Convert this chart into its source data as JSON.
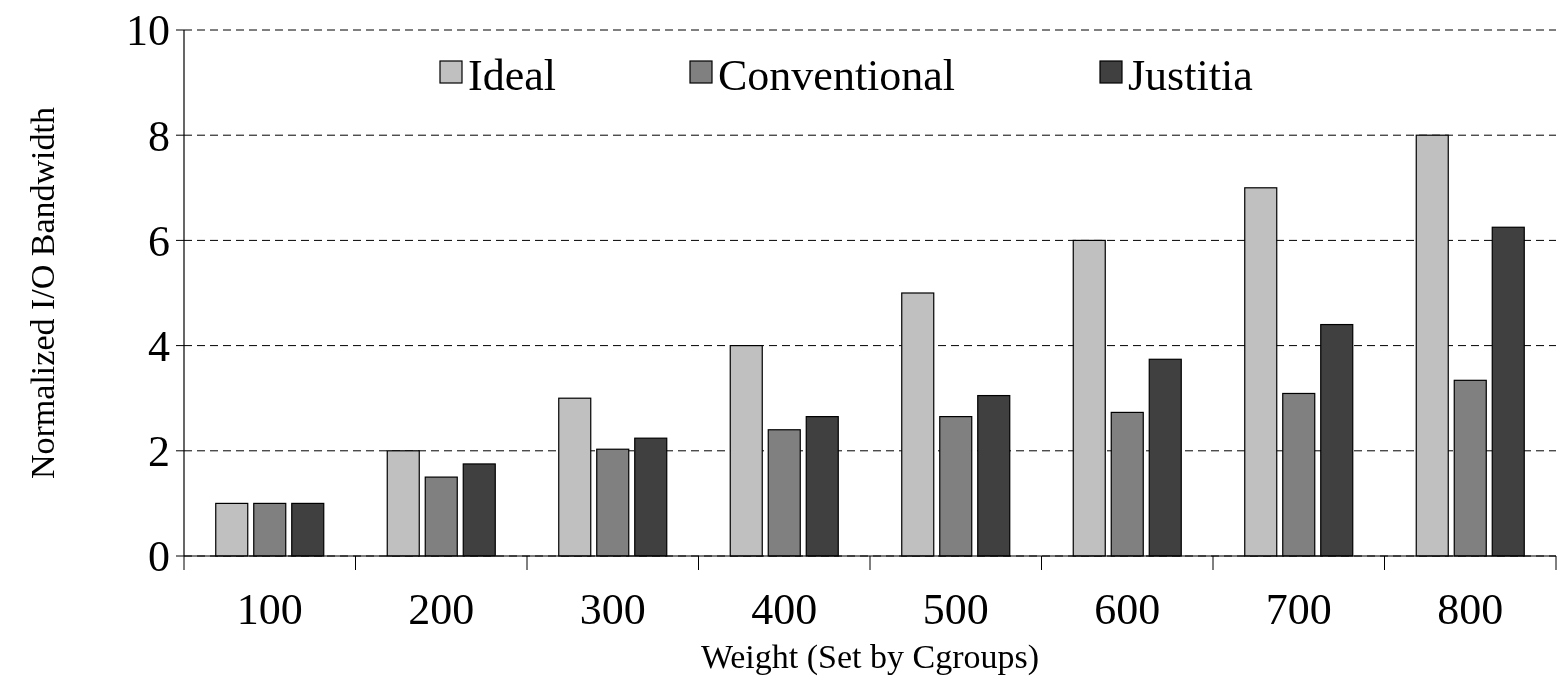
{
  "chart_data": {
    "type": "bar",
    "xlabel": "Weight (Set by Cgroups)",
    "ylabel": "Normalized I/O Bandwidth",
    "categories": [
      "100",
      "200",
      "300",
      "400",
      "500",
      "600",
      "700",
      "800"
    ],
    "series": [
      {
        "name": "Ideal",
        "color": "#c0c0c0",
        "values": [
          1,
          2,
          3,
          4,
          5,
          6,
          7,
          8
        ]
      },
      {
        "name": "Conventional",
        "color": "#808080",
        "values": [
          1,
          1.5,
          2.03,
          2.4,
          2.65,
          2.73,
          3.09,
          3.34
        ]
      },
      {
        "name": "Justitia",
        "color": "#404040",
        "values": [
          1,
          1.75,
          2.24,
          2.65,
          3.05,
          3.74,
          4.4,
          6.25
        ]
      }
    ],
    "ylim": [
      0,
      10
    ],
    "yticks": [
      0,
      2,
      4,
      6,
      8,
      10
    ],
    "grid": "y",
    "legend": "top"
  }
}
